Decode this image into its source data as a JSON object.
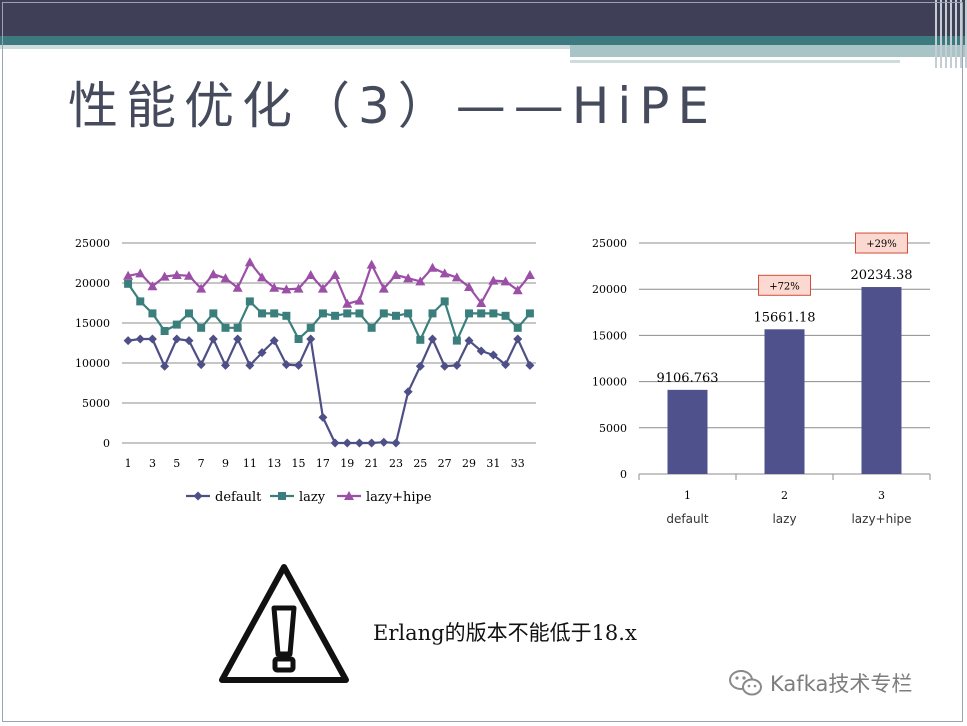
{
  "slide": {
    "title": "性能优化（3）——HiPE",
    "note": "Erlang的版本不能低于18.x",
    "watermark": "Kafka技术专栏",
    "colors": {
      "default": "#4e4f87",
      "lazy": "#3a7f7c",
      "lazy_hipe": "#9b4fa6",
      "bar": "#4f518c",
      "badge_bg": "#fbd8d0",
      "badge_border": "#d24d3a"
    },
    "icons": [
      "warning-triangle-icon",
      "wechat-icon"
    ]
  },
  "chart_data": [
    {
      "type": "line",
      "x": [
        1,
        2,
        3,
        4,
        5,
        6,
        7,
        8,
        9,
        10,
        11,
        12,
        13,
        14,
        15,
        16,
        17,
        18,
        19,
        20,
        21,
        22,
        23,
        24,
        25,
        26,
        27,
        28,
        29,
        30,
        31,
        32,
        33,
        34
      ],
      "x_tick_labels": [
        "1",
        "3",
        "5",
        "7",
        "9",
        "11",
        "13",
        "15",
        "17",
        "19",
        "21",
        "23",
        "25",
        "27",
        "29",
        "31",
        "33"
      ],
      "ylim": [
        0,
        25000
      ],
      "y_ticks": [
        0,
        5000,
        10000,
        15000,
        20000,
        25000
      ],
      "grid": true,
      "legend_position": "bottom",
      "series": [
        {
          "name": "default",
          "marker": "diamond",
          "values": [
            12800,
            13000,
            13000,
            9600,
            13000,
            12800,
            9800,
            13000,
            9700,
            13000,
            9700,
            11300,
            12800,
            9800,
            9700,
            13000,
            3200,
            0,
            0,
            0,
            0,
            100,
            0,
            6400,
            9600,
            13000,
            9600,
            9700,
            12800,
            11500,
            11000,
            9800,
            13000,
            9700
          ]
        },
        {
          "name": "lazy",
          "marker": "square",
          "values": [
            19900,
            17700,
            16200,
            14000,
            14800,
            16200,
            14400,
            16200,
            14400,
            14400,
            17700,
            16200,
            16200,
            15900,
            13000,
            14400,
            16200,
            15900,
            16200,
            16200,
            14400,
            16200,
            15900,
            16200,
            12900,
            16200,
            17700,
            12800,
            16200,
            16200,
            16200,
            15900,
            14400,
            16200
          ]
        },
        {
          "name": "lazy+hipe",
          "marker": "triangle",
          "values": [
            20900,
            21200,
            19600,
            20800,
            21000,
            20900,
            19300,
            21100,
            20600,
            19400,
            22600,
            20700,
            19400,
            19200,
            19300,
            21000,
            19300,
            21000,
            17400,
            17800,
            22300,
            19300,
            21000,
            20600,
            20200,
            21900,
            21200,
            20700,
            19500,
            17500,
            20300,
            20200,
            19100,
            21000
          ]
        }
      ]
    },
    {
      "type": "bar",
      "categories": [
        "1",
        "2",
        "3"
      ],
      "category_sublabels": [
        "default",
        "lazy",
        "lazy+hipe"
      ],
      "values": [
        9106.763,
        15661.18,
        20234.38
      ],
      "data_labels": [
        "9106.763",
        "15661.18",
        "20234.38"
      ],
      "annotations": [
        "",
        "+72%",
        "+29%"
      ],
      "ylim": [
        0,
        25000
      ],
      "y_ticks": [
        0,
        5000,
        10000,
        15000,
        20000,
        25000
      ],
      "grid": true
    }
  ]
}
